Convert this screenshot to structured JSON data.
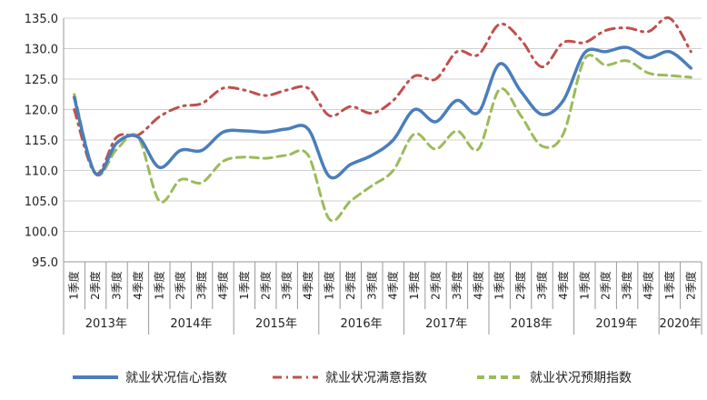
{
  "chart_data": {
    "type": "line",
    "title": "",
    "xlabel": "",
    "ylabel": "",
    "ylim": [
      95,
      135
    ],
    "yticks": [
      "95.0",
      "100.0",
      "105.0",
      "110.0",
      "115.0",
      "120.0",
      "125.0",
      "130.0",
      "135.0"
    ],
    "grid": true,
    "legend_position": "bottom",
    "quarters": [
      "1季度",
      "2季度",
      "3季度",
      "4季度",
      "1季度",
      "2季度",
      "3季度",
      "4季度",
      "1季度",
      "2季度",
      "3季度",
      "4季度",
      "1季度",
      "2季度",
      "3季度",
      "4季度",
      "1季度",
      "2季度",
      "3季度",
      "4季度",
      "1季度",
      "2季度",
      "3季度",
      "4季度",
      "1季度",
      "2季度",
      "3季度",
      "4季度",
      "1季度",
      "2季度"
    ],
    "years": [
      {
        "label": "2013年",
        "count": 4
      },
      {
        "label": "2014年",
        "count": 4
      },
      {
        "label": "2015年",
        "count": 4
      },
      {
        "label": "2016年",
        "count": 4
      },
      {
        "label": "2017年",
        "count": 4
      },
      {
        "label": "2018年",
        "count": 4
      },
      {
        "label": "2019年",
        "count": 4
      },
      {
        "label": "2020年",
        "count": 2
      }
    ],
    "series": [
      {
        "name": "就业状况信心指数",
        "color": "#4a7ebb",
        "dash": "solid",
        "values": [
          122.0,
          109.5,
          114.5,
          115.5,
          110.5,
          113.3,
          113.3,
          116.3,
          116.5,
          116.3,
          116.8,
          116.8,
          109.0,
          111.0,
          112.5,
          115.0,
          120.0,
          118.0,
          121.5,
          119.5,
          127.5,
          123.0,
          119.2,
          121.5,
          129.3,
          129.5,
          130.2,
          128.5,
          129.5,
          126.8
        ]
      },
      {
        "name": "就业状况满意指数",
        "color": "#c0504d",
        "dash": "dashdot",
        "values": [
          120.0,
          109.5,
          115.5,
          115.8,
          118.8,
          120.5,
          121.0,
          123.5,
          123.2,
          122.3,
          123.2,
          123.5,
          119.0,
          120.5,
          119.4,
          121.5,
          125.5,
          125.0,
          129.5,
          129.0,
          134.0,
          131.5,
          127.0,
          131.0,
          131.0,
          133.0,
          133.4,
          132.8,
          135.0,
          129.5
        ]
      },
      {
        "name": "就业状况预期指数",
        "color": "#9bbb59",
        "dash": "dash",
        "values": [
          122.5,
          109.5,
          113.5,
          115.5,
          105.0,
          108.5,
          108.0,
          111.5,
          112.2,
          112.0,
          112.5,
          112.5,
          102.0,
          105.0,
          107.5,
          110.0,
          116.0,
          113.5,
          116.5,
          113.5,
          123.3,
          119.0,
          114.0,
          116.0,
          128.3,
          127.3,
          128.0,
          126.0,
          125.6,
          125.3
        ]
      }
    ]
  }
}
